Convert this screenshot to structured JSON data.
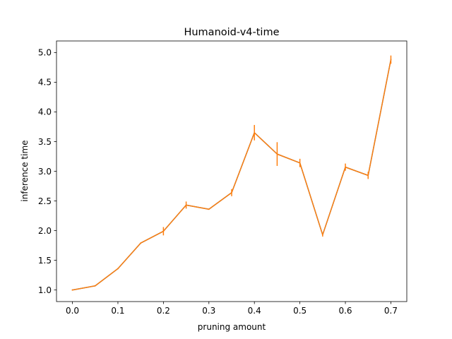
{
  "chart_data": {
    "type": "line",
    "title": "Humanoid-v4-time",
    "xlabel": "pruning amount",
    "ylabel": "inference time",
    "xlim": [
      -0.035,
      0.735
    ],
    "ylim": [
      0.805,
      5.195
    ],
    "grid": false,
    "xticks": [
      0.0,
      0.1,
      0.2,
      0.3,
      0.4,
      0.5,
      0.6,
      0.7
    ],
    "xtick_labels": [
      "0.0",
      "0.1",
      "0.2",
      "0.3",
      "0.4",
      "0.5",
      "0.6",
      "0.7"
    ],
    "yticks": [
      1.0,
      1.5,
      2.0,
      2.5,
      3.0,
      3.5,
      4.0,
      4.5,
      5.0
    ],
    "ytick_labels": [
      "1.0",
      "1.5",
      "2.0",
      "2.5",
      "3.0",
      "3.5",
      "4.0",
      "4.5",
      "5.0"
    ],
    "series": [
      {
        "color": "#1f77b4",
        "x": [
          0.0,
          0.05,
          0.1,
          0.15,
          0.2,
          0.25,
          0.3,
          0.35,
          0.4,
          0.45,
          0.5,
          0.55,
          0.6,
          0.65,
          0.7
        ],
        "y": [
          1.0,
          1.07,
          1.36,
          1.79,
          1.99,
          2.43,
          2.36,
          2.64,
          3.65,
          3.29,
          3.14,
          1.93,
          3.07,
          2.93,
          4.88
        ]
      },
      {
        "color": "#ff7f0e",
        "x": [
          0.0,
          0.05,
          0.1,
          0.15,
          0.2,
          0.25,
          0.3,
          0.35,
          0.4,
          0.45,
          0.5,
          0.55,
          0.6,
          0.65,
          0.7
        ],
        "y": [
          1.0,
          1.07,
          1.36,
          1.79,
          1.99,
          2.43,
          2.36,
          2.64,
          3.65,
          3.29,
          3.14,
          1.93,
          3.07,
          2.93,
          4.88
        ],
        "yerr": [
          0.01,
          0.01,
          0.01,
          0.01,
          0.07,
          0.06,
          0.01,
          0.06,
          0.13,
          0.2,
          0.07,
          0.03,
          0.06,
          0.06,
          0.07
        ]
      }
    ]
  }
}
